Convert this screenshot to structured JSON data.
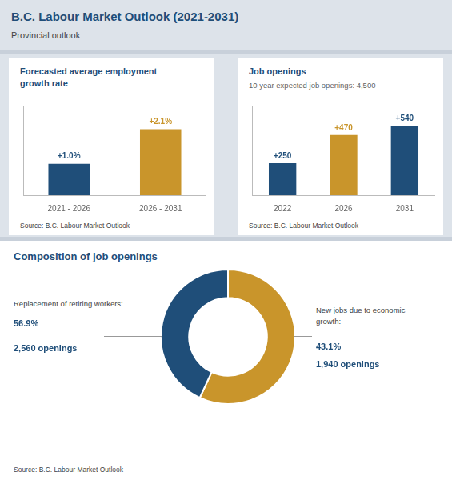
{
  "title": "B.C. Labour Market Outlook (2021-2031)",
  "subtitle": "Provincial outlook",
  "chart_data": [
    {
      "type": "bar",
      "title": "Forecasted average employment\ngrowth rate",
      "categories": [
        "2021 - 2026",
        "2026 - 2031"
      ],
      "values": [
        1.0,
        2.1
      ],
      "value_labels": [
        "+1.0%",
        "+2.1%"
      ],
      "colors": [
        "#1f4e79",
        "#c9952b"
      ],
      "ylim": [
        0,
        2.85
      ],
      "grid": false,
      "tick_labels": "x",
      "data_labels": true,
      "annotations": [
        "Source: B.C. Labour Market Outlook"
      ]
    },
    {
      "type": "bar",
      "title": "Job openings",
      "subtitle": "10 year expected job openings: 4,500",
      "categories": [
        "2022",
        "2026",
        "2031"
      ],
      "values": [
        250,
        470,
        540
      ],
      "value_labels": [
        "+250",
        "+470",
        "+540"
      ],
      "colors": [
        "#1f4e79",
        "#c9952b",
        "#1f4e79"
      ],
      "ylim": [
        0,
        700
      ],
      "grid": false,
      "tick_labels": "x",
      "data_labels": true,
      "annotations": [
        "Source: B.C. Labour Market Outlook"
      ]
    },
    {
      "type": "doughnut",
      "title": "Composition of job openings",
      "categories": [
        "Replacement of retiring workers:",
        "New jobs due to economic\ngrowth:"
      ],
      "values": [
        56.9,
        43.1
      ],
      "value_labels": [
        "56.9%",
        "43.1%"
      ],
      "counts": [
        2560,
        1940
      ],
      "count_labels": [
        "2,560 openings",
        "1,940 openings"
      ],
      "colors": [
        "#c9952b",
        "#1f4e79"
      ],
      "annotations": [
        "Source: B.C. Labour Market Outlook"
      ]
    }
  ]
}
